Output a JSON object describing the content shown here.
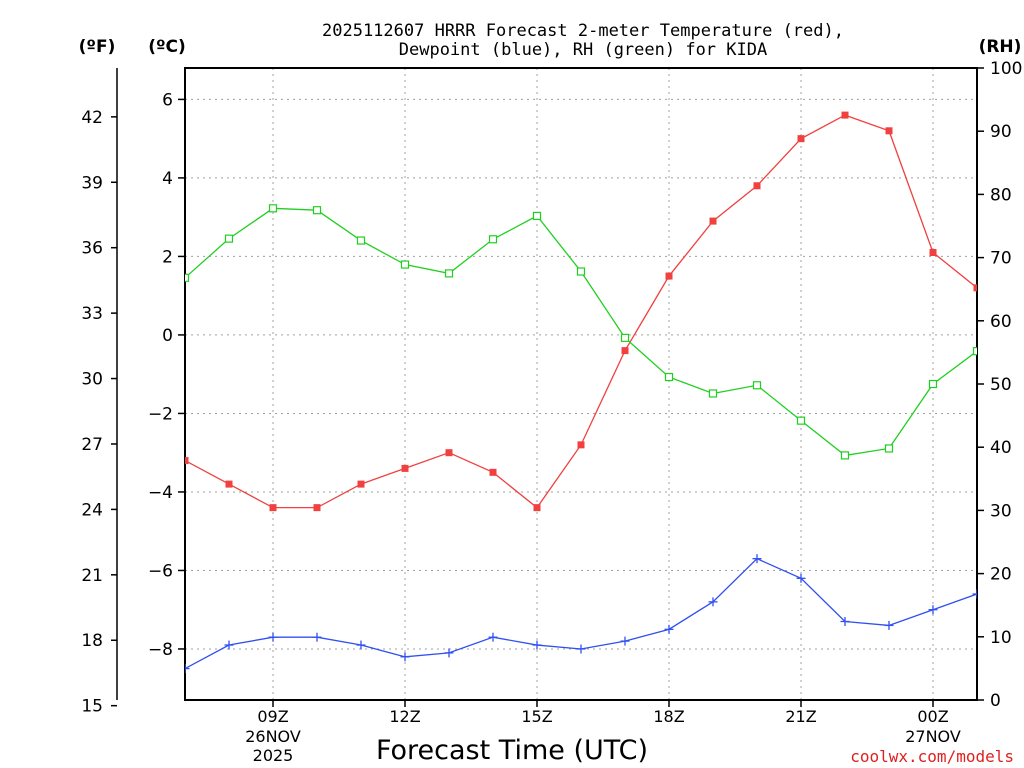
{
  "chart_data": {
    "type": "line",
    "title_line1": "2025112607 HRRR Forecast 2-meter Temperature (red),",
    "title_line2": "Dewpoint (blue), RH (green) for KIDA",
    "xlabel": "Forecast Time (UTC)",
    "watermark": "coolwx.com/models",
    "left_outer_unit": "(ºF)",
    "left_inner_unit": "(ºC)",
    "right_unit": "(RH)",
    "x_hours": [
      7,
      8,
      9,
      10,
      11,
      12,
      13,
      14,
      15,
      16,
      17,
      18,
      19,
      20,
      21,
      22,
      23,
      24,
      25
    ],
    "xlim": [
      7,
      25
    ],
    "x_ticks": [
      {
        "hour": 9,
        "label": "09Z",
        "sub1": "26NOV",
        "sub2": "2025"
      },
      {
        "hour": 12,
        "label": "12Z",
        "sub1": "",
        "sub2": ""
      },
      {
        "hour": 15,
        "label": "15Z",
        "sub1": "",
        "sub2": ""
      },
      {
        "hour": 18,
        "label": "18Z",
        "sub1": "",
        "sub2": ""
      },
      {
        "hour": 21,
        "label": "21Z",
        "sub1": "",
        "sub2": ""
      },
      {
        "hour": 24,
        "label": "00Z",
        "sub1": "27NOV",
        "sub2": ""
      }
    ],
    "celsius_range": [
      -9.3,
      6.8
    ],
    "celsius_ticks": [
      6,
      4,
      2,
      0,
      -2,
      -4,
      -6,
      -8
    ],
    "celsius_tick_labels": [
      "6",
      "4",
      "2",
      "0",
      "−2",
      "−4",
      "−6",
      "−8"
    ],
    "fahrenheit_ticks": [
      42,
      39,
      36,
      33,
      30,
      27,
      24,
      21,
      18,
      15
    ],
    "rh_range": [
      0,
      100
    ],
    "rh_ticks": [
      100,
      90,
      80,
      70,
      60,
      50,
      40,
      30,
      20,
      10,
      0
    ],
    "series": [
      {
        "name": "Temperature",
        "unit": "C",
        "color": "#f04040",
        "values": [
          -3.2,
          -3.8,
          -4.4,
          -4.4,
          -3.8,
          -3.4,
          -3.0,
          -3.5,
          -4.4,
          -2.8,
          -0.4,
          1.5,
          2.9,
          3.8,
          5.0,
          5.6,
          5.2,
          2.1,
          1.2
        ]
      },
      {
        "name": "Dewpoint",
        "unit": "C",
        "color": "#3050f0",
        "values": [
          -8.5,
          -7.9,
          -7.7,
          -7.7,
          -7.9,
          -8.2,
          -8.1,
          -7.7,
          -7.9,
          -8.0,
          -7.8,
          -7.5,
          -6.8,
          -5.7,
          -6.2,
          -7.3,
          -7.4,
          -7.0,
          -6.6
        ]
      },
      {
        "name": "RH",
        "unit": "%",
        "color": "#20d020",
        "values": [
          66.8,
          73.0,
          77.8,
          77.5,
          72.7,
          68.9,
          67.5,
          72.9,
          76.6,
          67.8,
          57.3,
          51.1,
          48.5,
          49.8,
          44.2,
          38.7,
          39.8,
          50.0,
          55.2
        ]
      }
    ]
  }
}
